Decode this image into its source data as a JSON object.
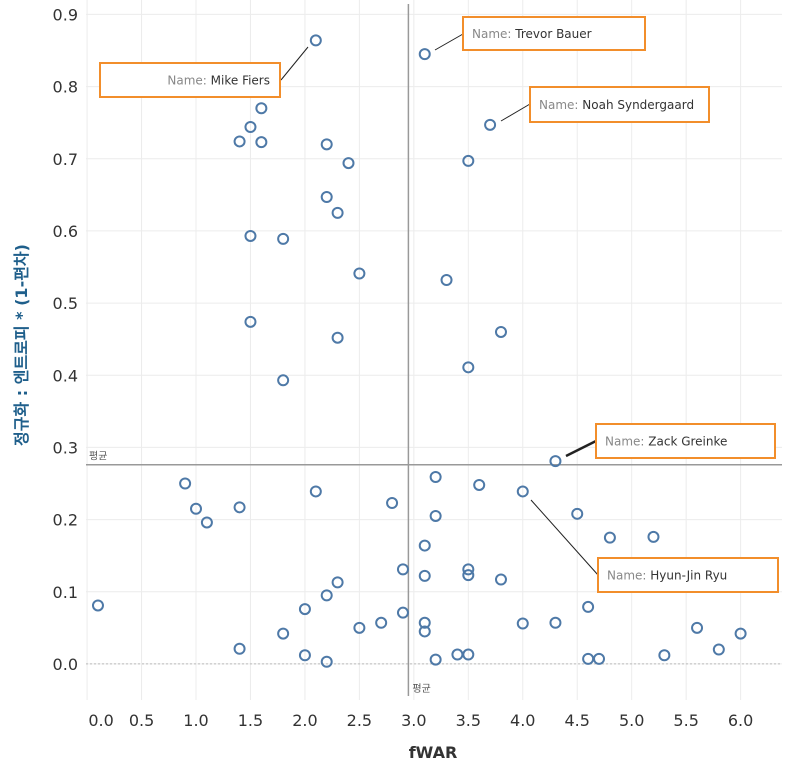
{
  "chart_data": {
    "type": "scatter",
    "xlabel": "fWAR",
    "ylabel": "정규화 : 엔트로피 * (1-편차)",
    "xlim": [
      -0.01,
      6.38
    ],
    "ylim": [
      -0.05,
      0.92
    ],
    "x_ticks": [
      "0.0",
      "0.5",
      "1.0",
      "1.5",
      "2.0",
      "2.5",
      "3.0",
      "3.5",
      "4.0",
      "4.5",
      "5.0",
      "5.5",
      "6.0"
    ],
    "y_ticks": [
      "0.0",
      "0.1",
      "0.2",
      "0.3",
      "0.4",
      "0.5",
      "0.6",
      "0.7",
      "0.8",
      "0.9"
    ],
    "grid": true,
    "marker": "hollow-circle",
    "marker_color": "#4e79a7",
    "reference_lines": {
      "label": "평균",
      "x_mean": 2.95,
      "y_mean": 0.276
    },
    "points": [
      {
        "x": 2.1,
        "y": 0.864,
        "name": "Mike Fiers"
      },
      {
        "x": 3.1,
        "y": 0.845,
        "name": "Trevor Bauer"
      },
      {
        "x": 1.6,
        "y": 0.77
      },
      {
        "x": 1.5,
        "y": 0.744
      },
      {
        "x": 1.4,
        "y": 0.724
      },
      {
        "x": 1.6,
        "y": 0.723
      },
      {
        "x": 2.2,
        "y": 0.72
      },
      {
        "x": 2.4,
        "y": 0.694
      },
      {
        "x": 2.2,
        "y": 0.647
      },
      {
        "x": 2.3,
        "y": 0.625
      },
      {
        "x": 1.5,
        "y": 0.593
      },
      {
        "x": 1.8,
        "y": 0.589
      },
      {
        "x": 2.5,
        "y": 0.541
      },
      {
        "x": 1.5,
        "y": 0.474
      },
      {
        "x": 2.3,
        "y": 0.452
      },
      {
        "x": 1.8,
        "y": 0.393
      },
      {
        "x": 3.7,
        "y": 0.747,
        "name": "Noah Syndergaard"
      },
      {
        "x": 3.5,
        "y": 0.697
      },
      {
        "x": 3.3,
        "y": 0.532
      },
      {
        "x": 3.8,
        "y": 0.46
      },
      {
        "x": 3.5,
        "y": 0.411
      },
      {
        "x": 4.3,
        "y": 0.281,
        "name": "Zack Greinke"
      },
      {
        "x": 0.9,
        "y": 0.25
      },
      {
        "x": 1.0,
        "y": 0.215
      },
      {
        "x": 1.1,
        "y": 0.196
      },
      {
        "x": 1.4,
        "y": 0.217
      },
      {
        "x": 2.1,
        "y": 0.239
      },
      {
        "x": 2.8,
        "y": 0.223
      },
      {
        "x": 0.1,
        "y": 0.081
      },
      {
        "x": 1.4,
        "y": 0.021
      },
      {
        "x": 1.8,
        "y": 0.042
      },
      {
        "x": 2.0,
        "y": 0.076
      },
      {
        "x": 2.0,
        "y": 0.012
      },
      {
        "x": 2.2,
        "y": 0.095
      },
      {
        "x": 2.2,
        "y": 0.003
      },
      {
        "x": 2.3,
        "y": 0.113
      },
      {
        "x": 2.5,
        "y": 0.05
      },
      {
        "x": 2.7,
        "y": 0.057
      },
      {
        "x": 2.9,
        "y": 0.131
      },
      {
        "x": 2.9,
        "y": 0.071
      },
      {
        "x": 3.1,
        "y": 0.164
      },
      {
        "x": 3.1,
        "y": 0.122
      },
      {
        "x": 3.1,
        "y": 0.057
      },
      {
        "x": 3.1,
        "y": 0.045
      },
      {
        "x": 3.2,
        "y": 0.259
      },
      {
        "x": 3.2,
        "y": 0.205
      },
      {
        "x": 3.2,
        "y": 0.006
      },
      {
        "x": 3.6,
        "y": 0.248
      },
      {
        "x": 4.0,
        "y": 0.239,
        "name": "Hyun-Jin Ryu"
      },
      {
        "x": 4.5,
        "y": 0.208
      },
      {
        "x": 4.8,
        "y": 0.175
      },
      {
        "x": 5.2,
        "y": 0.176
      },
      {
        "x": 3.5,
        "y": 0.131
      },
      {
        "x": 3.5,
        "y": 0.123
      },
      {
        "x": 3.8,
        "y": 0.117
      },
      {
        "x": 4.0,
        "y": 0.056
      },
      {
        "x": 4.3,
        "y": 0.057
      },
      {
        "x": 4.6,
        "y": 0.079
      },
      {
        "x": 3.4,
        "y": 0.013
      },
      {
        "x": 3.5,
        "y": 0.013
      },
      {
        "x": 4.6,
        "y": 0.007
      },
      {
        "x": 4.7,
        "y": 0.007
      },
      {
        "x": 5.3,
        "y": 0.012
      },
      {
        "x": 5.6,
        "y": 0.05
      },
      {
        "x": 5.8,
        "y": 0.02
      },
      {
        "x": 6.0,
        "y": 0.042
      }
    ],
    "annotations": [
      {
        "prefix": "Name: ",
        "name": "Mike Fiers",
        "align": "right"
      },
      {
        "prefix": "Name: ",
        "name": "Trevor Bauer",
        "align": "left"
      },
      {
        "prefix": "Name: ",
        "name": "Noah Syndergaard",
        "align": "left"
      },
      {
        "prefix": "Name: ",
        "name": "Zack Greinke",
        "align": "left"
      },
      {
        "prefix": "Name: ",
        "name": "Hyun-Jin Ryu",
        "align": "left"
      }
    ],
    "annotation_border_color": "#f28e2b"
  }
}
